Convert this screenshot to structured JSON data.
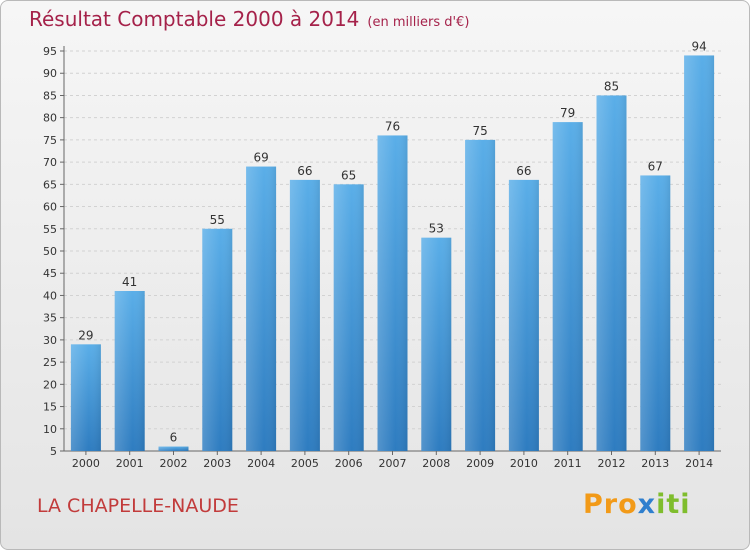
{
  "header": {
    "title": "Résultat Comptable 2000 à 2014",
    "subtitle": "(en milliers d'€)"
  },
  "footer": {
    "location": "LA CHAPELLE-NAUDE",
    "logo_parts": [
      {
        "text": "Pro",
        "color": "#f29a18"
      },
      {
        "text": "x",
        "color": "#2f7fce"
      },
      {
        "text": "iti",
        "color": "#7fbd2d"
      }
    ]
  },
  "chart_data": {
    "type": "bar",
    "title": "Résultat Comptable 2000 à 2014",
    "subtitle": "(en milliers d'€)",
    "categories": [
      "2000",
      "2001",
      "2002",
      "2003",
      "2004",
      "2005",
      "2006",
      "2007",
      "2008",
      "2009",
      "2010",
      "2011",
      "2012",
      "2013",
      "2014"
    ],
    "values": [
      29,
      41,
      6,
      55,
      69,
      66,
      65,
      76,
      53,
      75,
      66,
      79,
      85,
      67,
      94
    ],
    "ylim": [
      5,
      95
    ],
    "yticks": [
      5,
      10,
      15,
      20,
      25,
      30,
      35,
      40,
      45,
      50,
      55,
      60,
      65,
      70,
      75,
      80,
      85,
      90,
      95
    ],
    "grid": true,
    "bar_color_top": "#5aaee8",
    "bar_color_bottom": "#2e7cc0"
  }
}
